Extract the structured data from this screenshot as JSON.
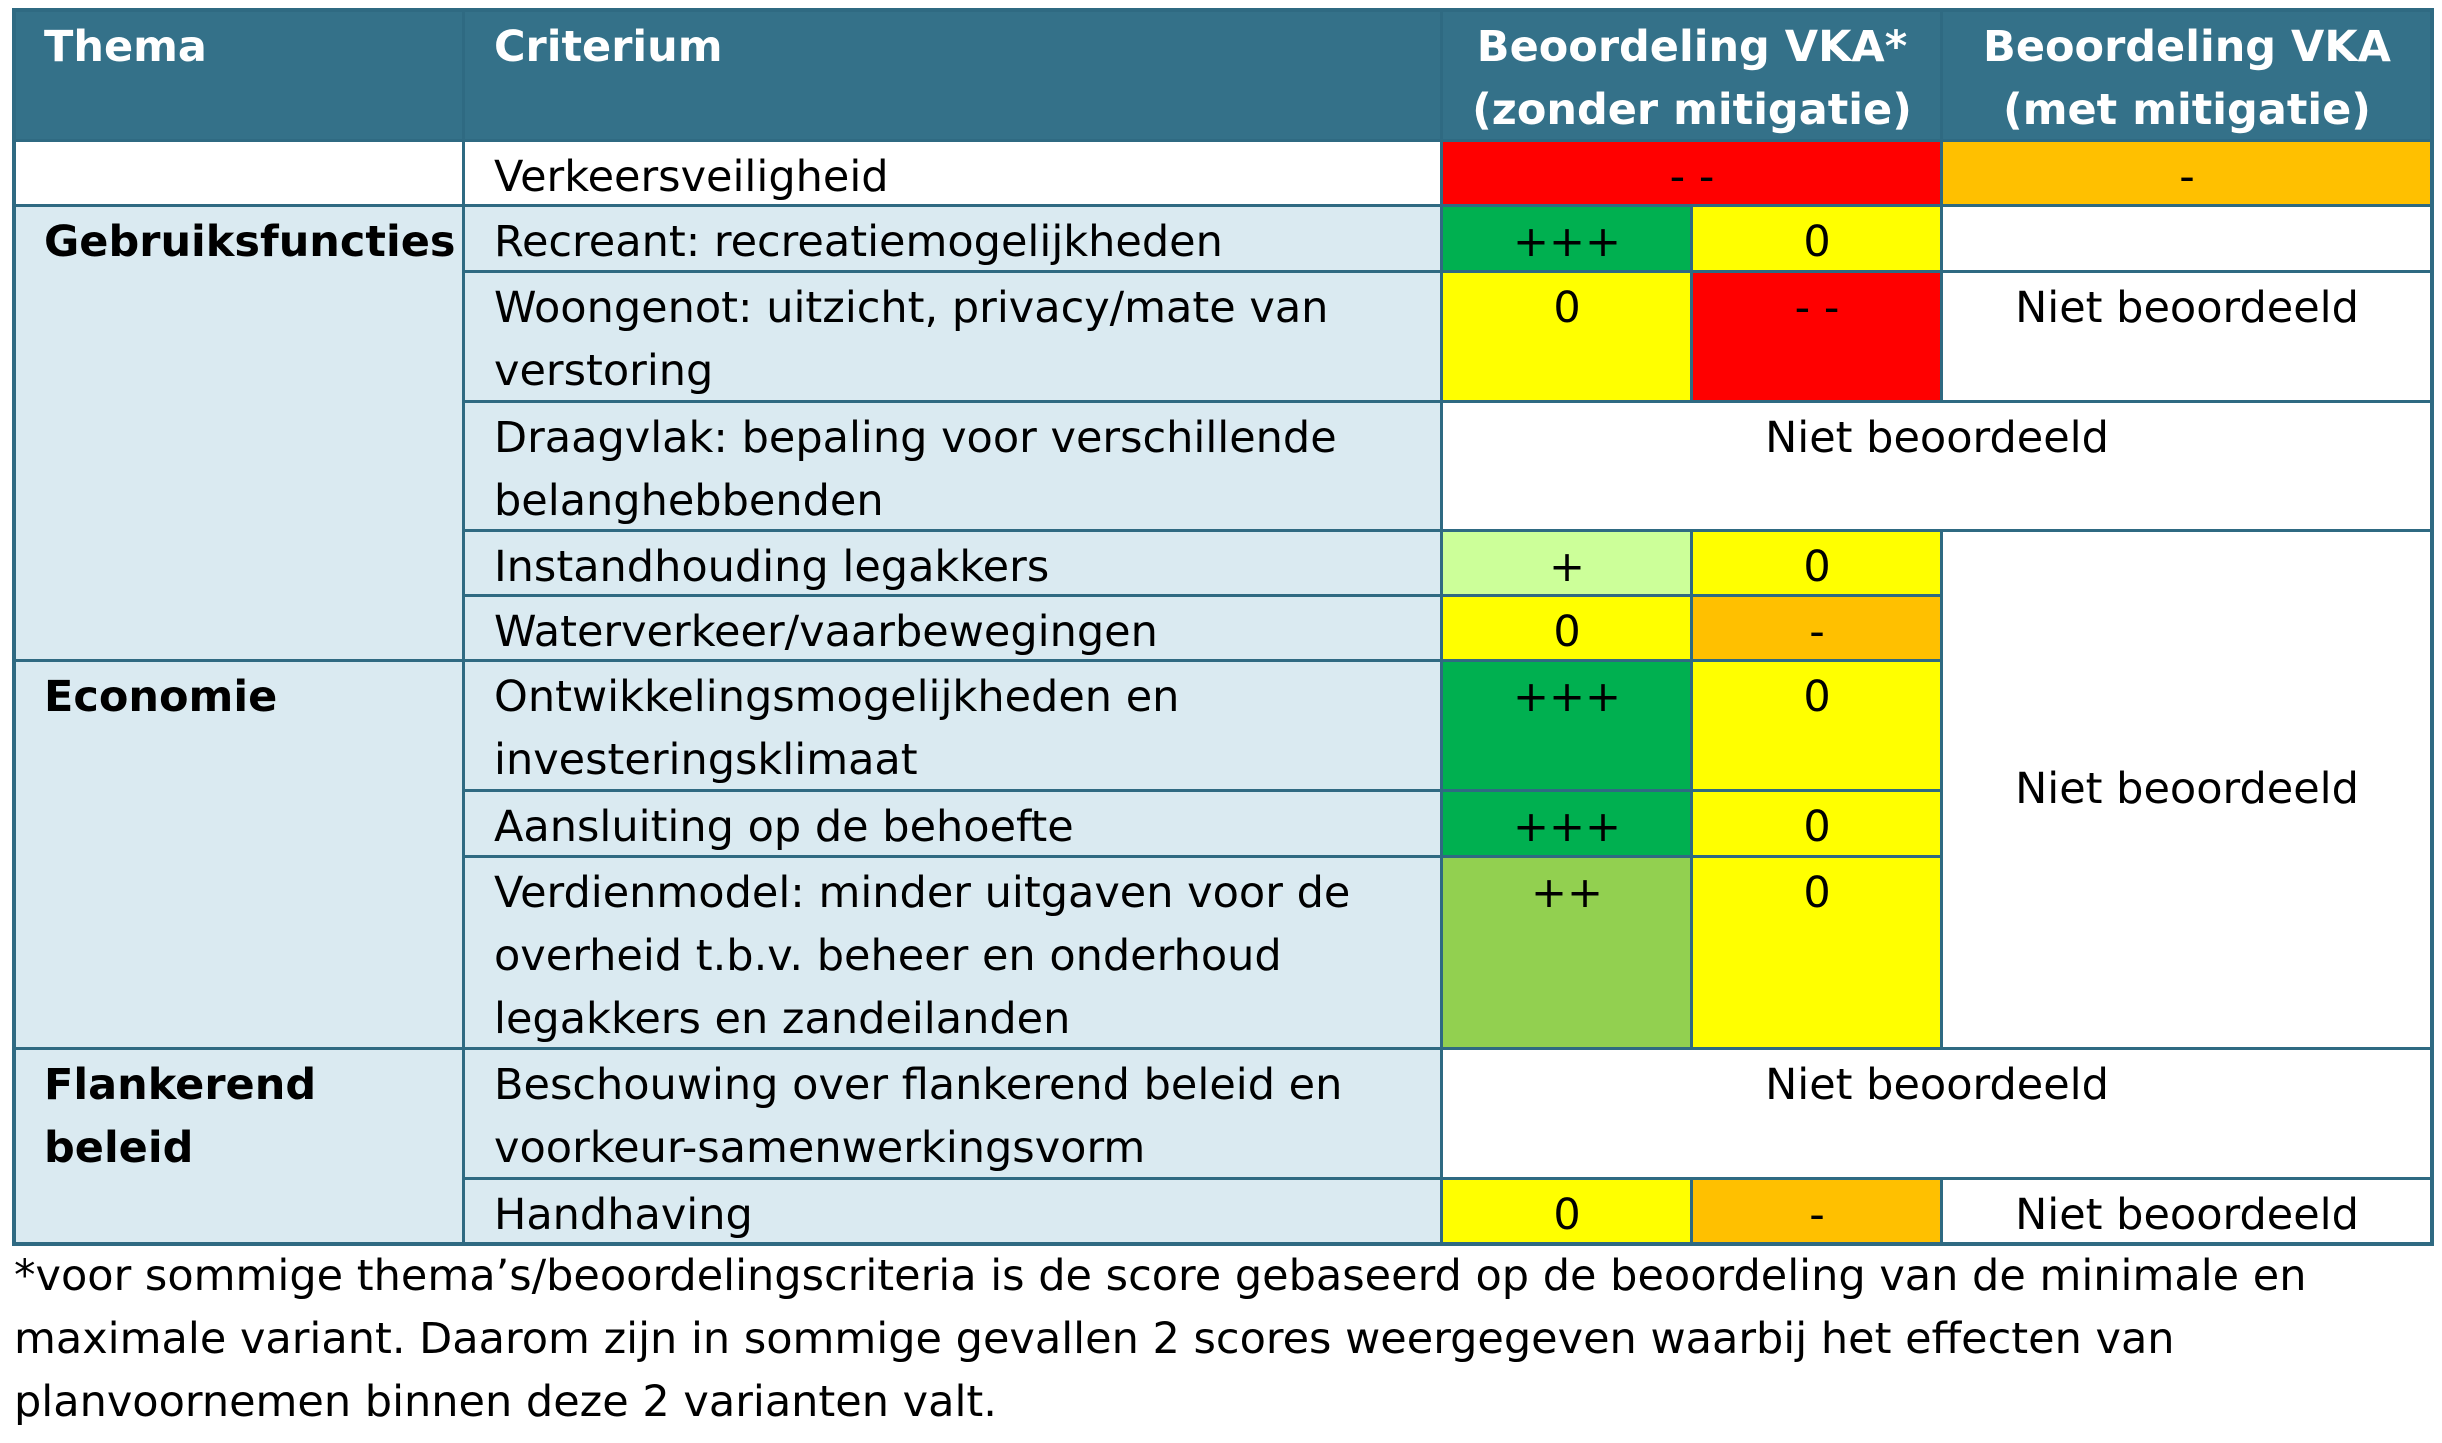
{
  "header": {
    "thema": "Thema",
    "criterium": "Criterium",
    "zonder_line1": "Beoordeling VKA*",
    "zonder_line2": "(zonder mitigatie)",
    "met_line1": "Beoordeling VKA",
    "met_line2": "(met mitigatie)"
  },
  "themes": {
    "gebruiksfuncties": "Gebruiksfuncties",
    "economie": "Economie",
    "flankerend": "Flankerend beleid"
  },
  "criteria": [
    "Verkeersveiligheid",
    "Recreant: recreatiemogelijkheden",
    "Woongenot: uitzicht, privacy/mate van verstoring",
    "Draagvlak: bepaling voor verschillende belanghebbenden",
    "Instandhouding legakkers",
    "Waterverkeer/vaarbewegingen",
    "Ontwikkelingsmogelijkheden en investeringsklimaat",
    "Aansluiting op de behoefte",
    "Verdienmodel: minder uitgaven voor de overheid t.b.v. beheer en onderhoud legakkers en zandeilanden",
    "Beschouwing over flankerend beleid en voorkeur-samenwerkingsvorm",
    "Handhaving"
  ],
  "scores": {
    "verkeersveiligheid_zonder": "- -",
    "verkeersveiligheid_met": "-",
    "recreant_min": "+++",
    "recreant_max": "0",
    "woongenot_min": "0",
    "woongenot_max": "- -",
    "legakkers_min": "+",
    "legakkers_max": "0",
    "waterverkeer_min": "0",
    "waterverkeer_max": "-",
    "ontwikkeling_min": "+++",
    "ontwikkeling_max": "0",
    "aansluiting_min": "+++",
    "aansluiting_max": "0",
    "verdienmodel_min": "++",
    "verdienmodel_max": "0",
    "handhaving_min": "0",
    "handhaving_max": "-"
  },
  "not_assessed": "Niet beoordeeld",
  "colors": {
    "header": "#347189",
    "theme_bg": "#daeaf1",
    "red": "#ff0000",
    "orange": "#ffc000",
    "yellow": "#ffff00",
    "dark_green": "#00b050",
    "mid_green": "#92d050",
    "light_green": "#ccff99"
  },
  "footnote": "*voor sommige thema’s/beoordelingscriteria is de score gebaseerd op de beoordeling van de minimale en maximale variant. Daarom zijn in sommige gevallen 2 scores weergegeven waarbij het effecten van planvoornemen binnen deze 2 varianten valt."
}
